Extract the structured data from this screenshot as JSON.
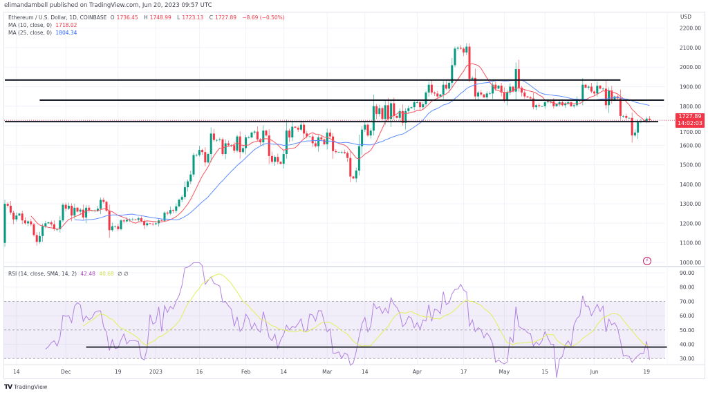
{
  "publisher_line": "elimandambell published on TradingView.com, Jun 20, 2023 09:57 UTC",
  "header": {
    "symbol": "Ethereum / U.S. Dollar, 1D, COINBASE",
    "open_label": "O",
    "open": "1736.45",
    "high_label": "H",
    "high": "1748.99",
    "low_label": "L",
    "low": "1723.13",
    "close_label": "C",
    "close": "1727.89",
    "change": "−8.69 (−0.50%)"
  },
  "ma10": {
    "label": "MA (10, close, 0)",
    "value": "1718.02",
    "color": "#f7525f"
  },
  "ma25": {
    "label": "MA (25, close, 0)",
    "value": "1804.34",
    "color": "#5b8cff"
  },
  "rsi": {
    "label": "RSI (14, close, SMA, 14, 2)",
    "value": "42.48",
    "sma_value": "40.68",
    "extra": "∅ ∅",
    "color": "#b080e0",
    "sma_color": "#e2ef5a"
  },
  "price_tag": {
    "price": "1727.89",
    "countdown": "14:02:03",
    "color": "#f23645"
  },
  "currency": "USD",
  "brand": {
    "logo": "TV",
    "name": "TradingView"
  },
  "icons": {
    "bolt": "lightning-icon"
  },
  "chart_data": {
    "type": "candlestick",
    "first_date": "2022-11-10",
    "first_open": 1100,
    "up_color": "#089981",
    "down_color": "#f23645",
    "price_axis": {
      "ticks": [
        "2200.00",
        "2100.00",
        "2000.00",
        "1900.00",
        "1800.00",
        "1700.00",
        "1600.00",
        "1500.00",
        "1400.00",
        "1300.00",
        "1200.00",
        "1100.00",
        "1000.00"
      ],
      "ylim": [
        1000,
        2200
      ]
    },
    "rsi_axis": {
      "ticks": [
        "90.00",
        "80.00",
        "70.00",
        "60.00",
        "50.00",
        "40.00",
        "30.00"
      ],
      "band": [
        30,
        70
      ],
      "midline": 50
    },
    "time_axis": [
      {
        "label": "14",
        "date": "2022-11-14"
      },
      {
        "label": "Dec",
        "date": "2022-12-01"
      },
      {
        "label": "19",
        "date": "2022-12-19"
      },
      {
        "label": "2023",
        "date": "2023-01-01"
      },
      {
        "label": "16",
        "date": "2023-01-16"
      },
      {
        "label": "Feb",
        "date": "2023-02-01"
      },
      {
        "label": "14",
        "date": "2023-02-14"
      },
      {
        "label": "Mar",
        "date": "2023-03-01"
      },
      {
        "label": "14",
        "date": "2023-03-14"
      },
      {
        "label": "Apr",
        "date": "2023-04-01"
      },
      {
        "label": "17",
        "date": "2023-04-17"
      },
      {
        "label": "May",
        "date": "2023-05-01"
      },
      {
        "label": "15",
        "date": "2023-05-15"
      },
      {
        "label": "Jun",
        "date": "2023-06-01"
      },
      {
        "label": "19",
        "date": "2023-06-19"
      }
    ],
    "closes": [
      1300,
      1290,
      1255,
      1220,
      1240,
      1250,
      1215,
      1200,
      1210,
      1195,
      1140,
      1105,
      1135,
      1185,
      1200,
      1205,
      1195,
      1170,
      1170,
      1215,
      1295,
      1275,
      1290,
      1240,
      1280,
      1260,
      1270,
      1230,
      1280,
      1265,
      1265,
      1265,
      1275,
      1320,
      1310,
      1265,
      1165,
      1185,
      1185,
      1170,
      1215,
      1210,
      1218,
      1220,
      1220,
      1218,
      1226,
      1212,
      1190,
      1200,
      1198,
      1196,
      1200,
      1215,
      1213,
      1255,
      1250,
      1268,
      1264,
      1287,
      1321,
      1335,
      1385,
      1415,
      1450,
      1550,
      1550,
      1576,
      1565,
      1512,
      1555,
      1660,
      1627,
      1627,
      1630,
      1555,
      1610,
      1600,
      1600,
      1572,
      1645,
      1565,
      1585,
      1640,
      1640,
      1665,
      1670,
      1630,
      1615,
      1675,
      1650,
      1545,
      1515,
      1540,
      1515,
      1505,
      1555,
      1675,
      1640,
      1695,
      1690,
      1680,
      1705,
      1660,
      1645,
      1645,
      1610,
      1595,
      1640,
      1630,
      1605,
      1665,
      1645,
      1570,
      1565,
      1565,
      1565,
      1560,
      1535,
      1440,
      1430,
      1470,
      1595,
      1680,
      1705,
      1650,
      1675,
      1800,
      1760,
      1790,
      1735,
      1805,
      1735,
      1815,
      1750,
      1740,
      1775,
      1715,
      1775,
      1790,
      1795,
      1820,
      1820,
      1795,
      1810,
      1870,
      1910,
      1870,
      1865,
      1850,
      1860,
      1910,
      1890,
      1920,
      2010,
      2095,
      2100,
      2095,
      2075,
      2105,
      1940,
      1945,
      1850,
      1870,
      1860,
      1845,
      1865,
      1865,
      1910,
      1890,
      1905,
      1870,
      1830,
      1870,
      1900,
      1875,
      1990,
      1895,
      1870,
      1850,
      1845,
      1840,
      1795,
      1805,
      1800,
      1800,
      1820,
      1825,
      1825,
      1800,
      1810,
      1820,
      1805,
      1815,
      1820,
      1800,
      1805,
      1830,
      1830,
      1910,
      1895,
      1900,
      1875,
      1865,
      1905,
      1890,
      1890,
      1805,
      1880,
      1830,
      1850,
      1840,
      1750,
      1750,
      1740,
      1740,
      1650,
      1665,
      1720,
      1725,
      1725,
      1736.45,
      1727.89
    ],
    "last_candle": {
      "open": 1736.45,
      "high": 1748.99,
      "low": 1723.13,
      "close": 1727.89
    },
    "drawn_levels": [
      {
        "price": 1934,
        "from": "2022-11-10",
        "to": "2023-06-10"
      },
      {
        "price": 1831,
        "from": "2022-11-22",
        "to": "2023-06-25"
      },
      {
        "price": 1721,
        "from": "2022-11-10",
        "to": "2023-06-23"
      }
    ],
    "rsi_level": {
      "value": 38,
      "from": "2022-12-08",
      "to": "2023-06-26"
    },
    "grid": true
  }
}
